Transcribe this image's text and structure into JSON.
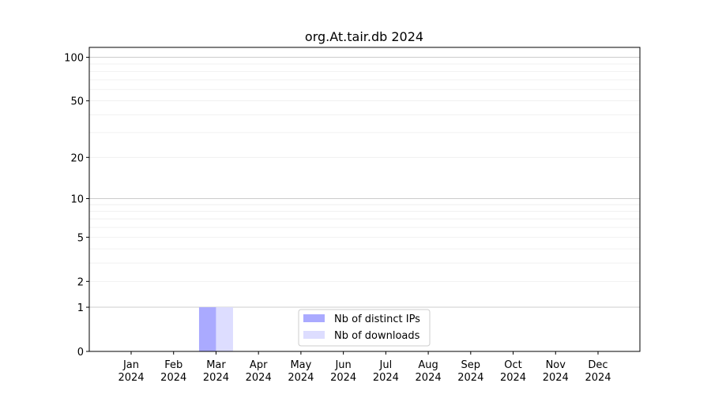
{
  "chart_data": {
    "type": "bar",
    "title": "org.At.tair.db 2024",
    "xlabel": "",
    "ylabel": "",
    "y_scale": "log(1+y)",
    "ylim": [
      0,
      117
    ],
    "grid": "horizontal, major and minor",
    "legend_position": "lower-center",
    "categories": [
      "Jan\n2024",
      "Feb\n2024",
      "Mar\n2024",
      "Apr\n2024",
      "May\n2024",
      "Jun\n2024",
      "Jul\n2024",
      "Aug\n2024",
      "Sep\n2024",
      "Oct\n2024",
      "Nov\n2024",
      "Dec\n2024"
    ],
    "y_ticks": [
      0,
      1,
      2,
      5,
      10,
      20,
      50,
      100
    ],
    "series": [
      {
        "name": "Nb of distinct IPs",
        "color": "#aaaaff",
        "values": [
          0,
          0,
          1,
          0,
          0,
          0,
          0,
          0,
          0,
          0,
          0,
          0
        ]
      },
      {
        "name": "Nb of downloads",
        "color": "#ddddff",
        "values": [
          0,
          0,
          1,
          0,
          0,
          0,
          0,
          0,
          0,
          0,
          0,
          0
        ]
      }
    ]
  }
}
